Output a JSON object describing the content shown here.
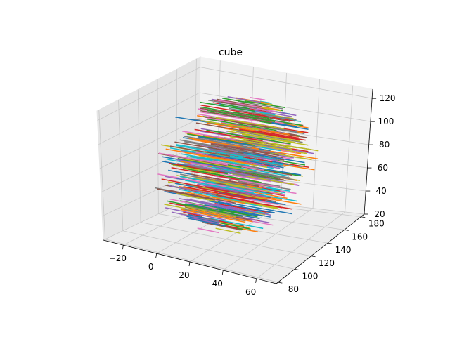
{
  "chart_data": {
    "type": "line",
    "projection": "3d",
    "title": "cube",
    "xlabel": "",
    "ylabel": "",
    "zlabel": "",
    "xlim": [
      -32,
      72
    ],
    "ylim": [
      78,
      184
    ],
    "zlim": [
      20,
      128
    ],
    "x_ticks": [
      -20,
      0,
      20,
      40,
      60
    ],
    "y_ticks": [
      80,
      100,
      120,
      140,
      160,
      180
    ],
    "z_ticks": [
      20,
      40,
      60,
      80,
      100,
      120
    ],
    "grid": true,
    "legend": "none",
    "series_description": "Many short line segments parallel to the x axis, each at a fixed (y, z), filling a roughly spherical region",
    "x_center": 20,
    "y_center": 130,
    "z_center": 75,
    "radius": 50,
    "segment_half_length": 20,
    "colors": [
      "#1f77b4",
      "#ff7f0e",
      "#2ca02c",
      "#d62728",
      "#9467bd",
      "#8c564b",
      "#e377c2",
      "#7f7f7f",
      "#bcbd22",
      "#17becf"
    ]
  }
}
